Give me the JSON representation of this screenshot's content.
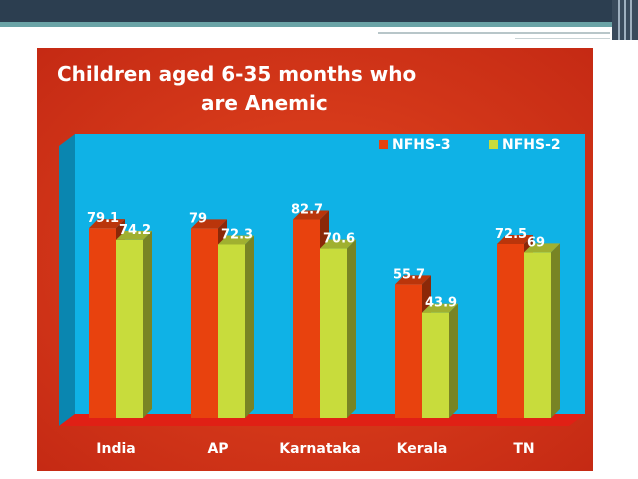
{
  "chart_data": {
    "type": "bar",
    "title": "Children aged 6-35 months who are Anemic",
    "title_lines": [
      "Children aged 6-35 months who",
      "are Anemic"
    ],
    "categories": [
      "India",
      "AP",
      "Karnataka",
      "Kerala",
      "TN"
    ],
    "series": [
      {
        "name": "NFHS-3",
        "values": [
          79.1,
          79,
          82.7,
          55.7,
          72.5
        ],
        "color": "#e8420e"
      },
      {
        "name": "NFHS-2",
        "values": [
          74.2,
          72.3,
          70.6,
          43.9,
          69
        ],
        "color": "#c8dc3c"
      }
    ],
    "value_labels": {
      "NFHS-3": [
        "79.1",
        "79",
        "82.7",
        "55.7",
        "72.5"
      ],
      "NFHS-2": [
        "74.2",
        "72.3",
        "70.6",
        "43.9",
        "69"
      ]
    },
    "ylim": [
      0,
      100
    ],
    "grid": false,
    "legend_position": "top-right",
    "colors": {
      "background": "#d9381e",
      "plot_area": "#0fb2e6",
      "floor": "#e02015",
      "title_text": "#ffffff",
      "category_text": "#ffffff"
    }
  }
}
